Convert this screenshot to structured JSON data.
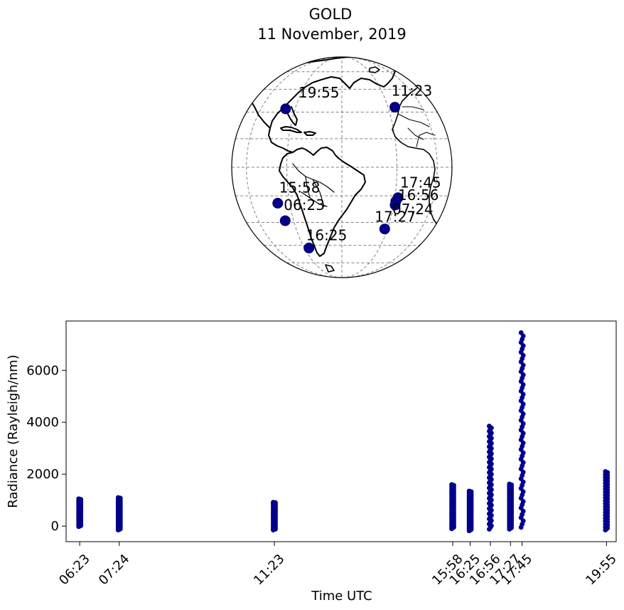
{
  "figure": {
    "title": "GOLD",
    "subtitle": "11 November, 2019"
  },
  "chart_data": [
    {
      "type": "map",
      "projection": "orthographic",
      "graticule": "dashed",
      "marker_color": "#00008b",
      "points": [
        {
          "label": "19:55",
          "lon": -97,
          "lat": 32
        },
        {
          "label": "11:23",
          "lon": -25,
          "lat": 33
        },
        {
          "label": "17:45",
          "lon": -28,
          "lat": -16
        },
        {
          "label": "16:56",
          "lon": -29,
          "lat": -18
        },
        {
          "label": "07:24",
          "lon": -29,
          "lat": -20
        },
        {
          "label": "17:27",
          "lon": -32,
          "lat": -34
        },
        {
          "label": "15:58",
          "lon": -98,
          "lat": -19
        },
        {
          "label": "06:23",
          "lon": -96,
          "lat": -29
        },
        {
          "label": "16:25",
          "lon": -86,
          "lat": -47
        }
      ]
    },
    {
      "type": "scatter",
      "xlabel": "Time UTC",
      "ylabel": "Radiance (Rayleigh/nm)",
      "ylim": [
        -600,
        7900
      ],
      "yticks": [
        0,
        2000,
        4000,
        6000
      ],
      "marker_color": "#00008b",
      "ticks": [
        {
          "label": "06:23",
          "time": "06:23",
          "ymin": -20,
          "ymax": 1050
        },
        {
          "label": "07:24",
          "time": "07:24",
          "ymin": -150,
          "ymax": 1100
        },
        {
          "label": "11:23",
          "time": "11:23",
          "ymin": -150,
          "ymax": 920
        },
        {
          "label": "15:58",
          "time": "15:58",
          "ymin": -100,
          "ymax": 1600
        },
        {
          "label": "16:25",
          "time": "16:25",
          "ymin": -180,
          "ymax": 1350
        },
        {
          "label": "16:56",
          "time": "16:56",
          "ymin": -120,
          "ymax": 3850
        },
        {
          "label": "17:27",
          "time": "17:27",
          "ymin": -120,
          "ymax": 1620
        },
        {
          "label": "17:45",
          "time": "17:45",
          "ymin": -50,
          "ymax": 7450
        },
        {
          "label": "19:55",
          "time": "19:55",
          "ymin": -150,
          "ymax": 2100
        }
      ]
    }
  ]
}
